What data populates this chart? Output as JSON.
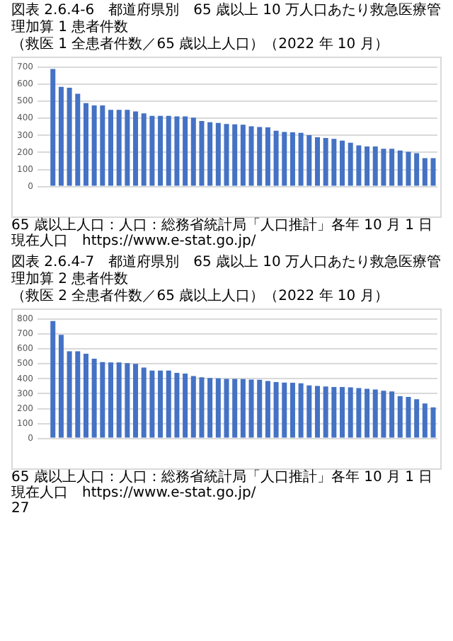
{
  "chart_data": [
    {
      "type": "bar",
      "title": "図表 2.6.4-6　都道府県別　65 歳以上 10 万人口あたり救急医療管理加算 1 患者件数",
      "subtitle": "（救医 1 全患者件数／65 歳以上人口）（2022 年 10 月）",
      "categories": [
        null,
        null,
        null,
        null,
        null,
        null,
        null,
        null,
        null,
        null,
        null,
        null,
        null,
        null,
        null,
        null,
        null,
        null,
        null,
        null,
        null,
        null,
        null,
        null,
        null,
        null,
        null,
        null,
        null,
        null,
        null,
        null,
        null,
        null,
        null,
        null,
        null,
        null,
        null,
        null,
        null,
        null,
        null,
        null,
        null,
        null,
        null
      ],
      "values": [
        690,
        585,
        580,
        545,
        490,
        476,
        476,
        450,
        450,
        450,
        441,
        430,
        415,
        415,
        415,
        412,
        412,
        405,
        385,
        378,
        374,
        367,
        365,
        363,
        354,
        350,
        348,
        328,
        320,
        318,
        315,
        302,
        289,
        285,
        280,
        270,
        257,
        241,
        235,
        235,
        222,
        222,
        211,
        204,
        196,
        167,
        167
      ],
      "color": "#4472c4",
      "ylim": [
        0,
        700
      ],
      "yticks": [
        0,
        100,
        200,
        300,
        400,
        500,
        600,
        700
      ],
      "grid": "y",
      "annotations": [
        "65 歳以上人口：人口：総務省統計局「人口推計」各年 10 月 1 日現在人口　https://www.e-stat.go.jp/"
      ]
    },
    {
      "type": "bar",
      "title": "図表 2.6.4-7　都道府県別　65 歳以上 10 万人口あたり救急医療管理加算 2 患者件数",
      "subtitle": "（救医 2 全患者件数／65 歳以上人口）（2022 年 10 月）",
      "categories": [
        null,
        null,
        null,
        null,
        null,
        null,
        null,
        null,
        null,
        null,
        null,
        null,
        null,
        null,
        null,
        null,
        null,
        null,
        null,
        null,
        null,
        null,
        null,
        null,
        null,
        null,
        null,
        null,
        null,
        null,
        null,
        null,
        null,
        null,
        null,
        null,
        null,
        null,
        null,
        null,
        null,
        null,
        null,
        null,
        null,
        null,
        null
      ],
      "values": [
        788,
        695,
        585,
        585,
        568,
        535,
        512,
        510,
        510,
        505,
        500,
        475,
        455,
        455,
        455,
        440,
        435,
        418,
        410,
        405,
        403,
        400,
        400,
        398,
        395,
        393,
        385,
        378,
        375,
        373,
        370,
        355,
        352,
        348,
        345,
        345,
        343,
        338,
        333,
        328,
        320,
        315,
        283,
        278,
        263,
        235,
        208
      ],
      "color": "#4472c4",
      "ylim": [
        0,
        800
      ],
      "yticks": [
        0,
        100,
        200,
        300,
        400,
        500,
        600,
        700,
        800
      ],
      "grid": "y",
      "annotations": [
        "65 歳以上人口：人口：総務省統計局「人口推計」各年 10 月 1 日現在人口　https://www.e-stat.go.jp/",
        "27"
      ]
    }
  ]
}
